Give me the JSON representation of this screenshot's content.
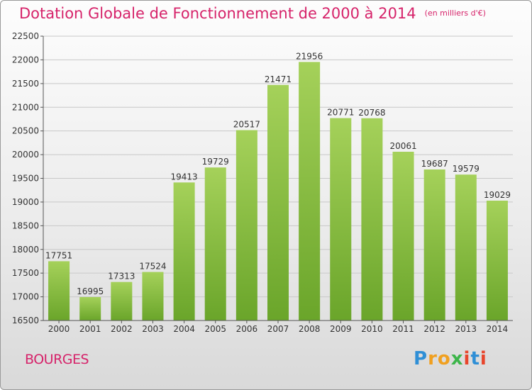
{
  "header": {
    "title": "Dotation Globale de Fonctionnement de 2000 à 2014",
    "unit": "(en milliers d'€)"
  },
  "footer": {
    "city": "BOURGES",
    "logo": "Proxiti"
  },
  "colors": {
    "title": "#d6236a",
    "bar_top": "#a5d15a",
    "bar_bottom": "#6aa52a"
  },
  "chart_data": {
    "type": "bar",
    "title": "Dotation Globale de Fonctionnement de 2000 à 2014",
    "subtitle": "(en milliers d'€)",
    "xlabel": "",
    "ylabel": "",
    "categories": [
      "2000",
      "2001",
      "2002",
      "2003",
      "2004",
      "2005",
      "2006",
      "2007",
      "2008",
      "2009",
      "2010",
      "2011",
      "2012",
      "2013",
      "2014"
    ],
    "values": [
      17751,
      16995,
      17313,
      17524,
      19413,
      19729,
      20517,
      21471,
      21956,
      20771,
      20768,
      20061,
      19687,
      19579,
      19029
    ],
    "ylim": [
      16500,
      22500
    ],
    "yticks": [
      16500,
      17000,
      17500,
      18000,
      18500,
      19000,
      19500,
      20000,
      20500,
      21000,
      21500,
      22000,
      22500
    ],
    "grid": true,
    "legend": "none"
  }
}
